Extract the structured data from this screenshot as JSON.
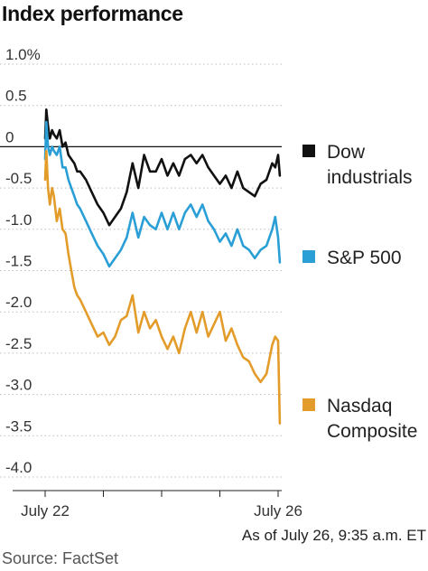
{
  "title": "Index performance",
  "note": "As of July 26, 9:35 a.m. ET",
  "source": "Source: FactSet",
  "chart_data": {
    "type": "line",
    "title": "Index performance",
    "xlabel": "",
    "ylabel": "",
    "ylim": [
      -4.0,
      1.0
    ],
    "yticks": [
      {
        "value": 1.0,
        "label": "1.0%"
      },
      {
        "value": 0.5,
        "label": "0.5"
      },
      {
        "value": 0.0,
        "label": "0"
      },
      {
        "value": -0.5,
        "label": "-0.5"
      },
      {
        "value": -1.0,
        "label": "-1.0"
      },
      {
        "value": -1.5,
        "label": "-1.5"
      },
      {
        "value": -2.0,
        "label": "-2.0"
      },
      {
        "value": -2.5,
        "label": "-2.5"
      },
      {
        "value": -3.0,
        "label": "-3.0"
      },
      {
        "value": -3.5,
        "label": "-3.5"
      },
      {
        "value": -4.0,
        "label": "-4.0"
      }
    ],
    "xticks": [
      {
        "value": 0,
        "label": "July 22"
      },
      {
        "value": 1,
        "label": ""
      },
      {
        "value": 2,
        "label": ""
      },
      {
        "value": 3,
        "label": ""
      },
      {
        "value": 4,
        "label": "July 26"
      }
    ],
    "xlim": [
      0,
      4.03
    ],
    "grid": false,
    "legend_position": "right",
    "series": [
      {
        "name": "Dow industrials",
        "color": "#111111",
        "x": [
          0,
          0.02,
          0.05,
          0.08,
          0.12,
          0.15,
          0.2,
          0.25,
          0.3,
          0.35,
          0.4,
          0.45,
          0.5,
          0.55,
          0.6,
          0.7,
          0.8,
          0.9,
          1.0,
          1.1,
          1.2,
          1.3,
          1.4,
          1.5,
          1.6,
          1.7,
          1.8,
          1.9,
          2.0,
          2.1,
          2.2,
          2.3,
          2.4,
          2.5,
          2.6,
          2.7,
          2.8,
          2.9,
          3.0,
          3.1,
          3.2,
          3.3,
          3.4,
          3.5,
          3.6,
          3.7,
          3.8,
          3.9,
          3.95,
          4.0,
          4.03
        ],
        "values": [
          0.1,
          0.45,
          0.25,
          0.1,
          0.2,
          0.15,
          0.1,
          0.2,
          0.0,
          0.05,
          -0.1,
          -0.15,
          -0.2,
          -0.3,
          -0.3,
          -0.4,
          -0.55,
          -0.7,
          -0.8,
          -0.95,
          -0.85,
          -0.75,
          -0.55,
          -0.2,
          -0.5,
          -0.1,
          -0.3,
          -0.3,
          -0.15,
          -0.35,
          -0.2,
          -0.35,
          -0.15,
          -0.1,
          -0.2,
          -0.1,
          -0.25,
          -0.35,
          -0.45,
          -0.35,
          -0.5,
          -0.3,
          -0.5,
          -0.55,
          -0.6,
          -0.45,
          -0.4,
          -0.2,
          -0.25,
          -0.1,
          -0.35
        ]
      },
      {
        "name": "S&P 500",
        "color": "#2a9fd6",
        "x": [
          0,
          0.02,
          0.05,
          0.08,
          0.12,
          0.15,
          0.2,
          0.25,
          0.3,
          0.35,
          0.4,
          0.45,
          0.5,
          0.55,
          0.6,
          0.7,
          0.8,
          0.9,
          1.0,
          1.1,
          1.2,
          1.3,
          1.4,
          1.5,
          1.6,
          1.7,
          1.8,
          1.9,
          2.0,
          2.1,
          2.2,
          2.3,
          2.4,
          2.5,
          2.6,
          2.7,
          2.8,
          2.9,
          3.0,
          3.1,
          3.2,
          3.3,
          3.4,
          3.5,
          3.6,
          3.7,
          3.8,
          3.9,
          3.95,
          4.0,
          4.03
        ],
        "values": [
          -0.15,
          0.3,
          0.0,
          -0.1,
          0.0,
          -0.05,
          -0.1,
          0.0,
          -0.25,
          -0.25,
          -0.4,
          -0.5,
          -0.6,
          -0.7,
          -0.75,
          -0.9,
          -1.05,
          -1.2,
          -1.3,
          -1.45,
          -1.35,
          -1.25,
          -1.1,
          -0.8,
          -1.1,
          -0.85,
          -0.95,
          -1.0,
          -0.8,
          -1.0,
          -0.8,
          -1.0,
          -0.8,
          -0.7,
          -0.85,
          -0.7,
          -0.9,
          -1.0,
          -1.15,
          -1.05,
          -1.2,
          -1.0,
          -1.2,
          -1.25,
          -1.35,
          -1.25,
          -1.2,
          -1.0,
          -0.85,
          -1.1,
          -1.4
        ]
      },
      {
        "name": "Nasdaq Composite",
        "color": "#e39c2a",
        "x": [
          0,
          0.02,
          0.05,
          0.08,
          0.12,
          0.15,
          0.2,
          0.25,
          0.3,
          0.35,
          0.4,
          0.45,
          0.5,
          0.55,
          0.6,
          0.7,
          0.8,
          0.9,
          1.0,
          1.1,
          1.2,
          1.3,
          1.4,
          1.5,
          1.6,
          1.7,
          1.8,
          1.9,
          2.0,
          2.1,
          2.2,
          2.3,
          2.4,
          2.5,
          2.6,
          2.7,
          2.8,
          2.9,
          3.0,
          3.1,
          3.2,
          3.3,
          3.4,
          3.5,
          3.6,
          3.7,
          3.8,
          3.9,
          3.95,
          4.0,
          4.03
        ],
        "values": [
          -0.4,
          -0.05,
          -0.5,
          -0.7,
          -0.5,
          -0.6,
          -0.9,
          -0.75,
          -1.0,
          -1.05,
          -1.3,
          -1.5,
          -1.7,
          -1.8,
          -1.85,
          -2.0,
          -2.15,
          -2.3,
          -2.25,
          -2.4,
          -2.3,
          -2.1,
          -2.05,
          -1.8,
          -2.25,
          -2.0,
          -2.2,
          -2.1,
          -2.3,
          -2.45,
          -2.3,
          -2.5,
          -2.2,
          -2.0,
          -2.25,
          -2.0,
          -2.3,
          -2.15,
          -2.0,
          -2.35,
          -2.2,
          -2.4,
          -2.55,
          -2.6,
          -2.75,
          -2.85,
          -2.75,
          -2.4,
          -2.3,
          -2.35,
          -3.35
        ]
      }
    ]
  }
}
